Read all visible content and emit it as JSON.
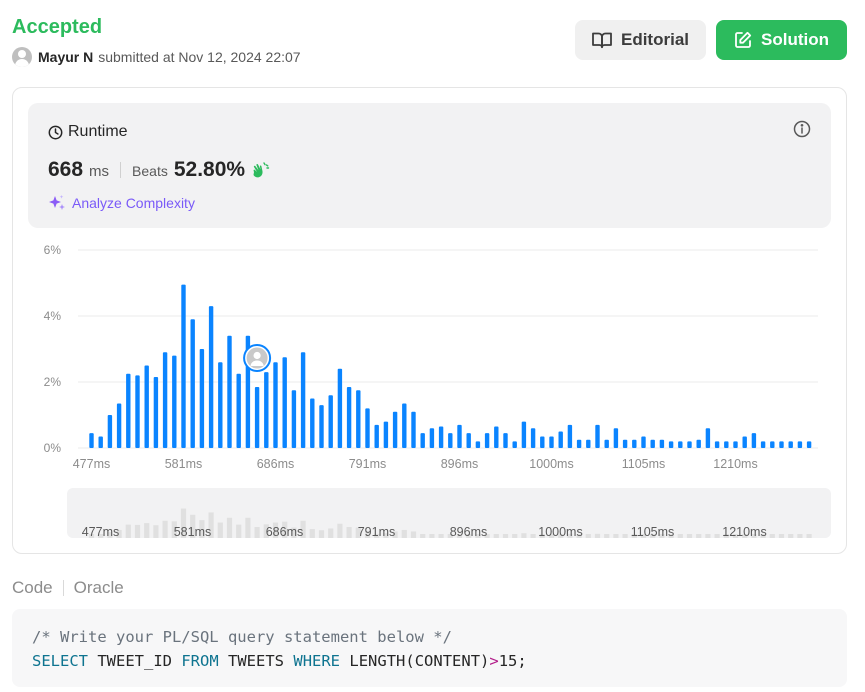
{
  "header": {
    "status": "Accepted",
    "user": "Mayur N",
    "submitted_text": "submitted at Nov 12, 2024 22:07",
    "editorial_label": "Editorial",
    "solution_label": "Solution"
  },
  "runtime": {
    "title": "Runtime",
    "value": "668",
    "unit": "ms",
    "beats_label": "Beats",
    "beats_value": "52.80%",
    "analyze_label": "Analyze Complexity"
  },
  "colors": {
    "accepted": "#2cbb5d",
    "bar": "#0a84ff",
    "bar_muted": "#e0e0e0",
    "analyze": "#7a5af8"
  },
  "chart_data": {
    "type": "bar",
    "title": "",
    "xlabel": "",
    "ylabel": "",
    "x_tick_labels": [
      "477ms",
      "581ms",
      "686ms",
      "791ms",
      "896ms",
      "1000ms",
      "1105ms",
      "1210ms"
    ],
    "y_tick_labels": [
      "0%",
      "2%",
      "4%",
      "6%"
    ],
    "ylim": [
      0,
      6
    ],
    "grid": true,
    "user_marker_bar_index": 18,
    "values": [
      0.45,
      0.35,
      1.0,
      1.35,
      2.25,
      2.2,
      2.5,
      2.15,
      2.9,
      2.8,
      4.95,
      3.9,
      3.0,
      4.3,
      2.6,
      3.4,
      2.25,
      3.4,
      1.85,
      2.3,
      2.6,
      2.75,
      1.75,
      2.9,
      1.5,
      1.3,
      1.6,
      2.4,
      1.85,
      1.75,
      1.2,
      0.7,
      0.8,
      1.1,
      1.35,
      1.1,
      0.45,
      0.6,
      0.65,
      0.45,
      0.7,
      0.45,
      0.2,
      0.45,
      0.65,
      0.45,
      0.2,
      0.8,
      0.6,
      0.35,
      0.35,
      0.5,
      0.7,
      0.25,
      0.25,
      0.7,
      0.25,
      0.6,
      0.25,
      0.25,
      0.35,
      0.25,
      0.25,
      0.2,
      0.2,
      0.2,
      0.25,
      0.6,
      0.2,
      0.2,
      0.2,
      0.35,
      0.45,
      0.2,
      0.2,
      0.2,
      0.2,
      0.2,
      0.2
    ]
  },
  "code": {
    "tab_code": "Code",
    "tab_oracle": "Oracle",
    "line1": "/* Write your PL/SQL query statement below */",
    "kw_select": "SELECT",
    "col": "TWEET_ID",
    "kw_from": "FROM",
    "table": "TWEETS",
    "kw_where": "WHERE",
    "fn": "LENGTH(CONTENT)",
    "op": ">",
    "num": "15",
    "end": ";"
  }
}
